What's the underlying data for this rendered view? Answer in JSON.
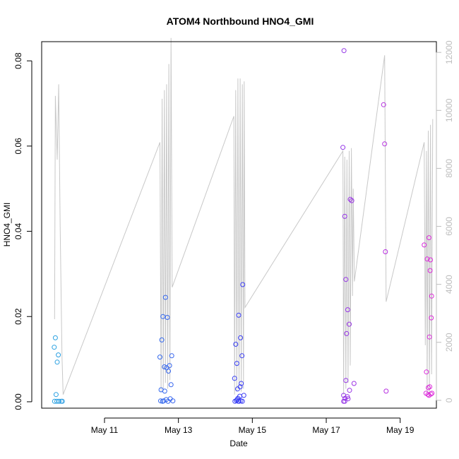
{
  "chart_data": {
    "type": "scatter",
    "title": "ATOM4 Northbound HNO4_GMI",
    "xlabel": "Date",
    "ylabel": "HNO4_GMI",
    "xlim": [
      9.3,
      19.98
    ],
    "ylim": [
      -0.0015,
      0.0845
    ],
    "y_ticks": [
      0.0,
      0.02,
      0.04,
      0.06,
      0.08
    ],
    "y_tick_labels": [
      "0.00",
      "0.02",
      "0.04",
      "0.06",
      "0.08"
    ],
    "x_ticks": [
      11,
      13,
      15,
      17,
      19
    ],
    "x_tick_labels": [
      "May 11",
      "May 13",
      "May 15",
      "May 17",
      "May 19"
    ],
    "y2lim": [
      -270,
      12370
    ],
    "y2_ticks": [
      0,
      2000,
      4000,
      6000,
      8000,
      10000,
      12000
    ],
    "y2_tick_labels": [
      "0",
      "2000",
      "4000",
      "6000",
      "8000",
      "10000",
      "12000"
    ],
    "color_low": "#29a8e0",
    "color_mid": "#3a3ff5",
    "color_high": "#e22ad9",
    "altitude_color": "#c8c8c8",
    "points": [
      [
        9.67,
        0.015
      ],
      [
        9.64,
        0.0128
      ],
      [
        9.75,
        0.011
      ],
      [
        9.72,
        0.0093
      ],
      [
        9.69,
        0.0017
      ],
      [
        9.65,
        0.0001
      ],
      [
        9.71,
        0.0001
      ],
      [
        9.77,
        0.0001
      ],
      [
        9.83,
        0.0001
      ],
      [
        9.86,
        0.0001
      ],
      [
        12.5,
        0.0105
      ],
      [
        12.55,
        0.0145
      ],
      [
        12.58,
        0.02
      ],
      [
        12.65,
        0.0245
      ],
      [
        12.7,
        0.0198
      ],
      [
        12.53,
        0.0028
      ],
      [
        12.62,
        0.0082
      ],
      [
        12.68,
        0.008
      ],
      [
        12.76,
        0.0085
      ],
      [
        12.73,
        0.0072
      ],
      [
        12.82,
        0.0108
      ],
      [
        12.8,
        0.004
      ],
      [
        12.63,
        0.0025
      ],
      [
        12.52,
        0.0002
      ],
      [
        12.57,
        0.0001
      ],
      [
        12.6,
        0.0002
      ],
      [
        12.67,
        0.0005
      ],
      [
        12.72,
        0.0001
      ],
      [
        12.78,
        0.0007
      ],
      [
        12.85,
        0.0002
      ],
      [
        14.52,
        0.0055
      ],
      [
        14.55,
        0.0135
      ],
      [
        14.58,
        0.009
      ],
      [
        14.63,
        0.0203
      ],
      [
        14.68,
        0.015
      ],
      [
        14.74,
        0.0275
      ],
      [
        14.72,
        0.0108
      ],
      [
        14.7,
        0.0043
      ],
      [
        14.6,
        0.003
      ],
      [
        14.67,
        0.0035
      ],
      [
        14.53,
        0.0001
      ],
      [
        14.57,
        0.0003
      ],
      [
        14.61,
        0.0008
      ],
      [
        14.64,
        0.0001
      ],
      [
        14.66,
        0.0013
      ],
      [
        14.69,
        0.0002
      ],
      [
        14.73,
        0.0001
      ],
      [
        14.77,
        0.0015
      ],
      [
        14.59,
        0.0005
      ],
      [
        14.62,
        0.0001
      ],
      [
        17.45,
        0.0597
      ],
      [
        17.48,
        0.0824
      ],
      [
        17.5,
        0.0435
      ],
      [
        17.53,
        0.0287
      ],
      [
        17.58,
        0.0216
      ],
      [
        17.55,
        0.016
      ],
      [
        17.62,
        0.0182
      ],
      [
        17.65,
        0.0475
      ],
      [
        17.69,
        0.0472
      ],
      [
        17.53,
        0.005
      ],
      [
        17.63,
        0.0027
      ],
      [
        17.75,
        0.0043
      ],
      [
        17.47,
        0.0015
      ],
      [
        17.51,
        0.0008
      ],
      [
        17.47,
        0.0001
      ],
      [
        17.57,
        0.0012
      ],
      [
        17.59,
        0.0007
      ],
      [
        17.5,
        0.0001
      ],
      [
        18.55,
        0.0697
      ],
      [
        18.58,
        0.0605
      ],
      [
        18.6,
        0.0352
      ],
      [
        18.62,
        0.0025
      ],
      [
        19.65,
        0.0368
      ],
      [
        19.73,
        0.0335
      ],
      [
        19.78,
        0.0385
      ],
      [
        19.82,
        0.0333
      ],
      [
        19.81,
        0.0308
      ],
      [
        19.85,
        0.0248
      ],
      [
        19.84,
        0.0197
      ],
      [
        19.79,
        0.0152
      ],
      [
        19.71,
        0.007
      ],
      [
        19.8,
        0.0035
      ],
      [
        19.76,
        0.0033
      ],
      [
        19.7,
        0.002
      ],
      [
        19.75,
        0.0017
      ],
      [
        19.83,
        0.0018
      ],
      [
        19.86,
        0.002
      ],
      [
        19.78,
        0.0015
      ]
    ],
    "altitude_series": [
      [
        9.65,
        2800
      ],
      [
        9.67,
        10500
      ],
      [
        9.72,
        8300
      ],
      [
        9.76,
        10900
      ],
      [
        9.8,
        6000
      ],
      [
        9.85,
        1500
      ],
      [
        9.88,
        200
      ],
      [
        12.5,
        8900
      ],
      [
        12.53,
        300
      ],
      [
        12.56,
        10400
      ],
      [
        12.59,
        400
      ],
      [
        12.62,
        10700
      ],
      [
        12.65,
        600
      ],
      [
        12.68,
        10900
      ],
      [
        12.71,
        400
      ],
      [
        12.74,
        11600
      ],
      [
        12.77,
        700
      ],
      [
        12.8,
        12500
      ],
      [
        12.83,
        3900
      ],
      [
        14.5,
        9800
      ],
      [
        14.52,
        200
      ],
      [
        14.55,
        10700
      ],
      [
        14.58,
        300
      ],
      [
        14.61,
        11100
      ],
      [
        14.64,
        400
      ],
      [
        14.67,
        11100
      ],
      [
        14.7,
        300
      ],
      [
        14.73,
        10900
      ],
      [
        14.76,
        400
      ],
      [
        14.78,
        11000
      ],
      [
        14.8,
        3200
      ],
      [
        17.45,
        8600
      ],
      [
        17.47,
        200
      ],
      [
        17.5,
        8400
      ],
      [
        17.53,
        400
      ],
      [
        17.56,
        8300
      ],
      [
        17.59,
        600
      ],
      [
        17.62,
        8600
      ],
      [
        17.65,
        1200
      ],
      [
        17.68,
        8700
      ],
      [
        17.71,
        3600
      ],
      [
        17.73,
        7300
      ],
      [
        17.76,
        4100
      ],
      [
        18.58,
        11900
      ],
      [
        18.62,
        3400
      ],
      [
        19.65,
        8900
      ],
      [
        19.68,
        1900
      ],
      [
        19.71,
        8600
      ],
      [
        19.73,
        300
      ],
      [
        19.76,
        9300
      ],
      [
        19.79,
        200
      ],
      [
        19.82,
        9500
      ],
      [
        19.85,
        900
      ],
      [
        19.88,
        9700
      ]
    ]
  }
}
